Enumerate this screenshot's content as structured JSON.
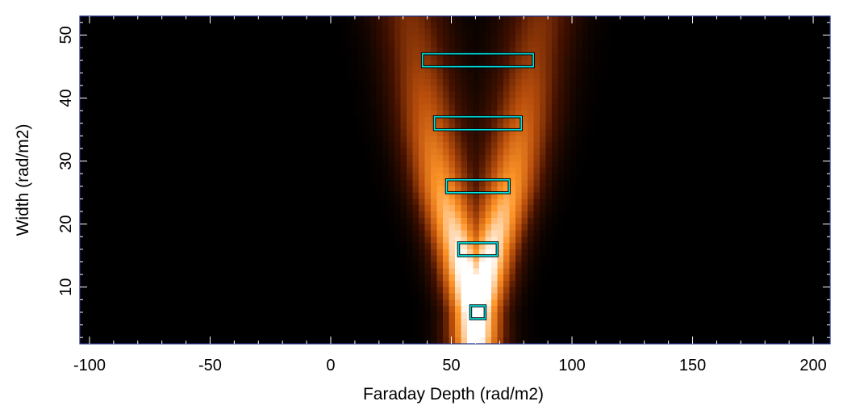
{
  "chart_data": {
    "type": "heatmap",
    "title": "",
    "xlabel": "Faraday Depth (rad/m2)",
    "ylabel": "Width (rad/m2)",
    "xlim": [
      -104,
      207
    ],
    "ylim": [
      1,
      53
    ],
    "x_ticks": [
      -100,
      -50,
      0,
      50,
      100,
      150,
      200
    ],
    "x_tick_labels": [
      "-100",
      "-50",
      "0",
      "50",
      "100",
      "150",
      "200"
    ],
    "y_ticks": [
      10,
      20,
      30,
      40,
      50
    ],
    "y_tick_labels": [
      "10",
      "20",
      "30",
      "40",
      "50"
    ],
    "colormap": "black-orange-white",
    "colors": {
      "highlight": "#00e5e5",
      "frame": "#1f2a8a",
      "background": "#000000"
    },
    "grid": false,
    "ridge": {
      "center_faraday_depth": 60,
      "width_points": [
        1,
        6,
        16,
        26,
        36,
        46,
        53
      ],
      "peak_separation_half": [
        0,
        2,
        8,
        15,
        20,
        24,
        27
      ],
      "peak_spread": [
        8,
        7,
        7.5,
        8.5,
        9.5,
        10,
        10.5
      ],
      "peak_intensity": [
        1.05,
        1.0,
        0.88,
        0.74,
        0.58,
        0.44,
        0.38
      ]
    },
    "highlight_boxes": [
      {
        "width_center": 6,
        "faraday_depth_range": [
          58,
          64
        ]
      },
      {
        "width_center": 16,
        "faraday_depth_range": [
          53,
          69
        ]
      },
      {
        "width_center": 26,
        "faraday_depth_range": [
          48,
          74
        ]
      },
      {
        "width_center": 36,
        "faraday_depth_range": [
          43,
          79
        ]
      },
      {
        "width_center": 46,
        "faraday_depth_range": [
          38,
          84
        ]
      }
    ]
  }
}
